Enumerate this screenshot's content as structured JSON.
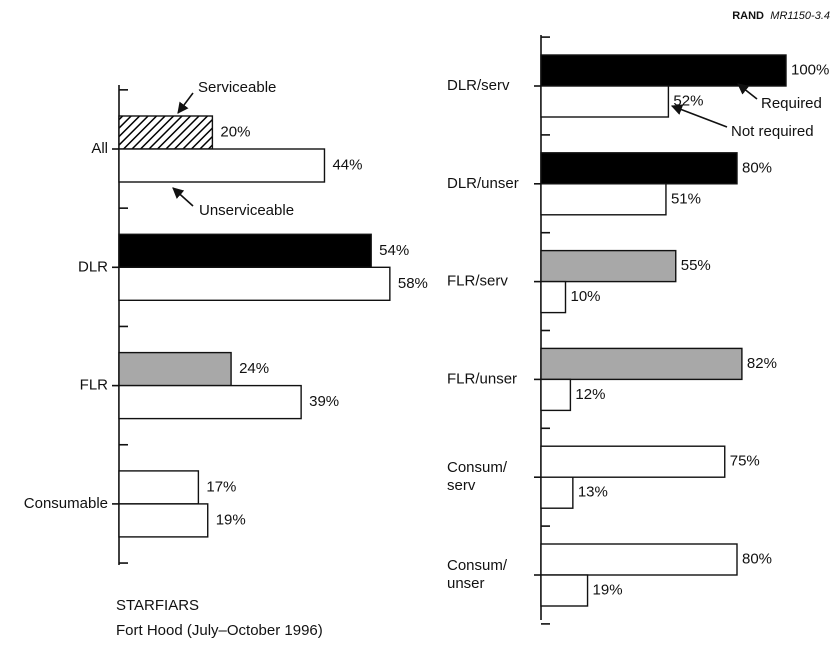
{
  "source": {
    "org": "RAND",
    "id": "MR1150-3.4"
  },
  "chart_data": [
    {
      "type": "bar",
      "horizontal": true,
      "title": "STARFIARS",
      "subtitle": "Fort Hood (July–October 1996)",
      "categories": [
        "All",
        "DLR",
        "FLR",
        "Consumable"
      ],
      "series": [
        {
          "name": "Serviceable",
          "colors": [
            "#000000",
            "#000000",
            "#a8a8a8",
            "#ffffff"
          ],
          "hatched": [
            true,
            false,
            false,
            false
          ],
          "values": [
            20,
            54,
            24,
            17
          ],
          "value_labels": [
            "20%",
            "54%",
            "24%",
            "17%"
          ]
        },
        {
          "name": "Unserviceable",
          "colors": [
            "#ffffff",
            "#ffffff",
            "#ffffff",
            "#ffffff"
          ],
          "hatched": [
            false,
            false,
            false,
            false
          ],
          "values": [
            44,
            58,
            39,
            19
          ],
          "value_labels": [
            "44%",
            "58%",
            "39%",
            "19%"
          ]
        }
      ]
    },
    {
      "type": "bar",
      "horizontal": true,
      "categories": [
        "DLR/serv",
        "DLR/unser",
        "FLR/serv",
        "FLR/unser",
        "Consum/\nserv",
        "Consum/\nunser"
      ],
      "series": [
        {
          "name": "Required",
          "colors": [
            "#000000",
            "#000000",
            "#a8a8a8",
            "#a8a8a8",
            "#ffffff",
            "#ffffff"
          ],
          "hatched": [
            false,
            false,
            false,
            false,
            false,
            false
          ],
          "values": [
            100,
            80,
            55,
            82,
            75,
            80
          ],
          "value_labels": [
            "100%",
            "80%",
            "55%",
            "82%",
            "75%",
            "80%"
          ]
        },
        {
          "name": "Not required",
          "colors": [
            "#ffffff",
            "#ffffff",
            "#ffffff",
            "#ffffff",
            "#ffffff",
            "#ffffff"
          ],
          "hatched": [
            false,
            false,
            false,
            false,
            false,
            false
          ],
          "values": [
            52,
            51,
            10,
            12,
            13,
            19
          ],
          "value_labels": [
            "52%",
            "51%",
            "10%",
            "12%",
            "13%",
            "19%"
          ]
        }
      ]
    }
  ]
}
